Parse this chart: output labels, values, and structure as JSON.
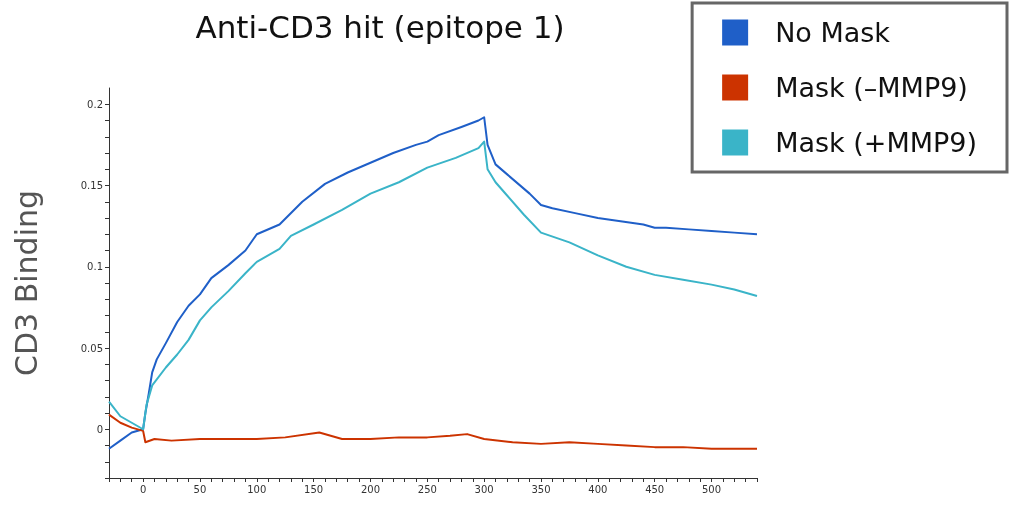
{
  "chart_data": {
    "type": "line",
    "title": "Anti-CD3 hit (epitope 1)",
    "ylabel": "CD3 Binding",
    "xlim": [
      -30,
      540
    ],
    "ylim": [
      -0.03,
      0.21
    ],
    "xticks": [
      {
        "value": -30,
        "label": null
      },
      {
        "value": -20,
        "label": null
      },
      {
        "value": -10,
        "label": null
      },
      0,
      {
        "value": 10,
        "label": null
      },
      {
        "value": 20,
        "label": null
      },
      {
        "value": 30,
        "label": null
      },
      {
        "value": 40,
        "label": null
      },
      50,
      {
        "value": 60,
        "label": null
      },
      {
        "value": 70,
        "label": null
      },
      {
        "value": 80,
        "label": null
      },
      {
        "value": 90,
        "label": null
      },
      100,
      {
        "value": 110,
        "label": null
      },
      {
        "value": 120,
        "label": null
      },
      {
        "value": 130,
        "label": null
      },
      {
        "value": 140,
        "label": null
      },
      150,
      {
        "value": 160,
        "label": null
      },
      {
        "value": 170,
        "label": null
      },
      {
        "value": 180,
        "label": null
      },
      {
        "value": 190,
        "label": null
      },
      200,
      {
        "value": 210,
        "label": null
      },
      {
        "value": 220,
        "label": null
      },
      {
        "value": 230,
        "label": null
      },
      {
        "value": 240,
        "label": null
      },
      250,
      {
        "value": 260,
        "label": null
      },
      {
        "value": 270,
        "label": null
      },
      {
        "value": 280,
        "label": null
      },
      {
        "value": 290,
        "label": null
      },
      300,
      {
        "value": 310,
        "label": null
      },
      {
        "value": 320,
        "label": null
      },
      {
        "value": 330,
        "label": null
      },
      {
        "value": 340,
        "label": null
      },
      350,
      {
        "value": 360,
        "label": null
      },
      {
        "value": 370,
        "label": null
      },
      {
        "value": 380,
        "label": null
      },
      {
        "value": 390,
        "label": null
      },
      400,
      {
        "value": 410,
        "label": null
      },
      {
        "value": 420,
        "label": null
      },
      {
        "value": 430,
        "label": null
      },
      {
        "value": 440,
        "label": null
      },
      450,
      {
        "value": 460,
        "label": null
      },
      {
        "value": 470,
        "label": null
      },
      {
        "value": 480,
        "label": null
      },
      {
        "value": 490,
        "label": null
      },
      500,
      {
        "value": 510,
        "label": null
      },
      {
        "value": 520,
        "label": null
      },
      {
        "value": 530,
        "label": null
      },
      {
        "value": 540,
        "label": null
      }
    ],
    "yticks": [
      {
        "value": -0.03,
        "label": null
      },
      {
        "value": -0.02,
        "label": null
      },
      {
        "value": -0.01,
        "label": null
      },
      0,
      {
        "value": 0.01,
        "label": null
      },
      {
        "value": 0.02,
        "label": null
      },
      {
        "value": 0.03,
        "label": null
      },
      {
        "value": 0.04,
        "label": null
      },
      0.05,
      {
        "value": 0.06,
        "label": null
      },
      {
        "value": 0.07,
        "label": null
      },
      {
        "value": 0.08,
        "label": null
      },
      {
        "value": 0.09,
        "label": null
      },
      0.1,
      {
        "value": 0.11,
        "label": null
      },
      {
        "value": 0.12,
        "label": null
      },
      {
        "value": 0.13,
        "label": null
      },
      {
        "value": 0.14,
        "label": null
      },
      0.15,
      {
        "value": 0.16,
        "label": null
      },
      {
        "value": 0.17,
        "label": null
      },
      {
        "value": 0.18,
        "label": null
      },
      {
        "value": 0.19,
        "label": null
      },
      0.2
    ],
    "grid": false,
    "legend": "top right",
    "marker": "none",
    "line_style": "solid",
    "series": [
      {
        "name": "No Mask",
        "color": "#1f5fc8",
        "x": [
          -30,
          -20,
          -10,
          0,
          2,
          5,
          8,
          12,
          20,
          30,
          40,
          50,
          60,
          75,
          90,
          100,
          120,
          140,
          160,
          180,
          200,
          220,
          240,
          250,
          260,
          280,
          295,
          300,
          303,
          310,
          320,
          340,
          350,
          360,
          380,
          400,
          420,
          440,
          450,
          460,
          480,
          500,
          520,
          540
        ],
        "values": [
          -0.012,
          -0.007,
          -0.002,
          0.0,
          0.01,
          0.022,
          0.035,
          0.043,
          0.053,
          0.066,
          0.076,
          0.083,
          0.093,
          0.101,
          0.11,
          0.12,
          0.126,
          0.14,
          0.151,
          0.158,
          0.164,
          0.17,
          0.175,
          0.177,
          0.181,
          0.186,
          0.19,
          0.192,
          0.175,
          0.163,
          0.157,
          0.145,
          0.138,
          0.136,
          0.133,
          0.13,
          0.128,
          0.126,
          0.124,
          0.124,
          0.123,
          0.122,
          0.121,
          0.12
        ]
      },
      {
        "name": "Mask (–MMP9)",
        "color": "#cc3300",
        "x": [
          -30,
          -20,
          -10,
          0,
          2,
          10,
          25,
          50,
          75,
          100,
          125,
          155,
          175,
          200,
          225,
          250,
          270,
          285,
          300,
          325,
          350,
          375,
          400,
          425,
          450,
          475,
          500,
          520,
          540
        ],
        "values": [
          0.009,
          0.004,
          0.001,
          -0.001,
          -0.008,
          -0.006,
          -0.007,
          -0.006,
          -0.006,
          -0.006,
          -0.005,
          -0.002,
          -0.006,
          -0.006,
          -0.005,
          -0.005,
          -0.004,
          -0.003,
          -0.006,
          -0.008,
          -0.009,
          -0.008,
          -0.009,
          -0.01,
          -0.011,
          -0.011,
          -0.012,
          -0.012,
          -0.012
        ]
      },
      {
        "name": "Mask (+MMP9)",
        "color": "#3ab4c8",
        "x": [
          -30,
          -20,
          -10,
          0,
          3,
          8,
          20,
          30,
          40,
          50,
          60,
          75,
          90,
          100,
          120,
          130,
          150,
          175,
          200,
          225,
          250,
          275,
          295,
          300,
          303,
          310,
          320,
          335,
          350,
          375,
          400,
          425,
          450,
          475,
          500,
          520,
          540
        ],
        "values": [
          0.017,
          0.008,
          0.004,
          0.0,
          0.015,
          0.027,
          0.038,
          0.046,
          0.055,
          0.067,
          0.075,
          0.085,
          0.096,
          0.103,
          0.111,
          0.119,
          0.126,
          0.135,
          0.145,
          0.152,
          0.161,
          0.167,
          0.173,
          0.177,
          0.16,
          0.152,
          0.144,
          0.132,
          0.121,
          0.115,
          0.107,
          0.1,
          0.095,
          0.092,
          0.089,
          0.086,
          0.082
        ]
      }
    ]
  }
}
